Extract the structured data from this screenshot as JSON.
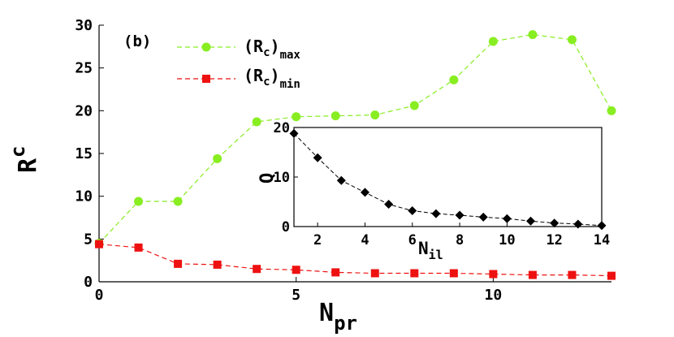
{
  "chart_data": [
    {
      "type": "line",
      "panel_label": "(b)",
      "xlabel": "N",
      "xlabel_sub": "pr",
      "ylabel": "R",
      "ylabel_sub": "c",
      "xlim": [
        0,
        13
      ],
      "ylim": [
        0,
        30
      ],
      "xticks": [
        0,
        5,
        10
      ],
      "yticks": [
        0,
        5,
        10,
        15,
        20,
        25,
        30
      ],
      "x": [
        0,
        1,
        2,
        3,
        4,
        5,
        6,
        7,
        8,
        9,
        10,
        11,
        12,
        13
      ],
      "series": [
        {
          "name": "(R",
          "name_sub": "c",
          "name_tail": ")",
          "name_sub2": "max",
          "color": "#88ee22",
          "marker": "circle",
          "values": [
            4.5,
            9.4,
            9.4,
            14.4,
            18.7,
            19.3,
            19.4,
            19.5,
            20.6,
            23.6,
            28.1,
            28.9,
            28.3,
            20.0
          ]
        },
        {
          "name": "(R",
          "name_sub": "c",
          "name_tail": ")",
          "name_sub2": "min",
          "color": "#ee1111",
          "marker": "square",
          "values": [
            4.4,
            4.0,
            2.1,
            2.0,
            1.5,
            1.4,
            1.1,
            1.0,
            1.0,
            1.0,
            0.9,
            0.8,
            0.8,
            0.7
          ]
        }
      ],
      "legend_position": "top-left"
    },
    {
      "type": "line",
      "inset": true,
      "xlabel": "N",
      "xlabel_sub": "il",
      "ylabel": "Q",
      "xlim": [
        1,
        14
      ],
      "ylim": [
        0,
        20
      ],
      "xticks": [
        2,
        4,
        6,
        8,
        10,
        12,
        14
      ],
      "yticks": [
        0,
        10,
        20
      ],
      "x": [
        1,
        2,
        3,
        4,
        5,
        6,
        7,
        8,
        9,
        10,
        11,
        12,
        13,
        14
      ],
      "series": [
        {
          "color": "#000000",
          "marker": "diamond",
          "values": [
            18.8,
            13.9,
            9.3,
            6.9,
            4.5,
            3.2,
            2.6,
            2.3,
            1.9,
            1.6,
            1.1,
            0.7,
            0.5,
            0.2
          ]
        }
      ]
    }
  ]
}
